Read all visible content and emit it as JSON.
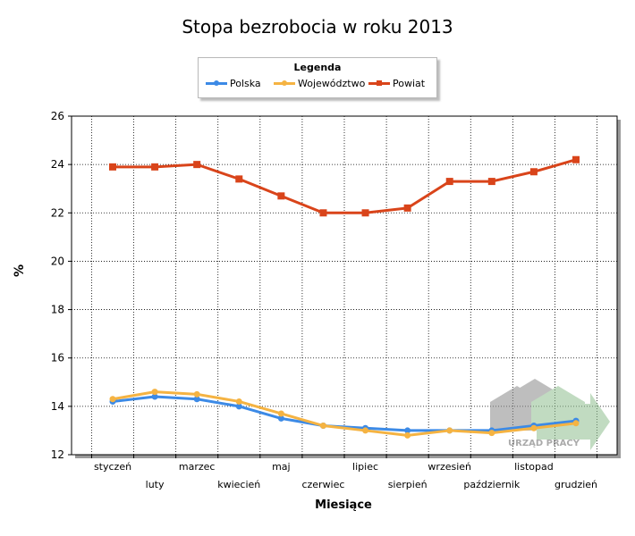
{
  "chart_data": {
    "type": "line",
    "title": "Stopa bezrobocia w roku 2013",
    "xlabel": "Miesiące",
    "ylabel": "%",
    "legend_title": "Legenda",
    "legend_position": "top-center",
    "grid": true,
    "ylim": [
      12,
      26
    ],
    "yticks": [
      12,
      14,
      16,
      18,
      20,
      22,
      24,
      26
    ],
    "categories": [
      "styczeń",
      "luty",
      "marzec",
      "kwiecień",
      "maj",
      "czerwiec",
      "lipiec",
      "sierpień",
      "wrzesień",
      "październik",
      "listopad",
      "grudzień"
    ],
    "series": [
      {
        "name": "Polska",
        "color": "#3c8ae6",
        "marker": "circle",
        "values": [
          14.2,
          14.4,
          14.3,
          14.0,
          13.5,
          13.2,
          13.1,
          13.0,
          13.0,
          13.0,
          13.2,
          13.4
        ]
      },
      {
        "name": "Województwo",
        "color": "#f5b342",
        "marker": "circle",
        "values": [
          14.3,
          14.6,
          14.5,
          14.2,
          13.7,
          13.2,
          13.0,
          12.8,
          13.0,
          12.9,
          13.1,
          13.3
        ]
      },
      {
        "name": "Powiat",
        "color": "#d9441a",
        "marker": "square",
        "values": [
          23.9,
          23.9,
          24.0,
          23.4,
          22.7,
          22.0,
          22.0,
          22.2,
          23.3,
          23.3,
          23.7,
          24.2
        ]
      }
    ]
  },
  "watermark": {
    "text": "URZĄD PRACY",
    "colors": [
      "#8a8a8a",
      "#8fbf8f"
    ]
  }
}
